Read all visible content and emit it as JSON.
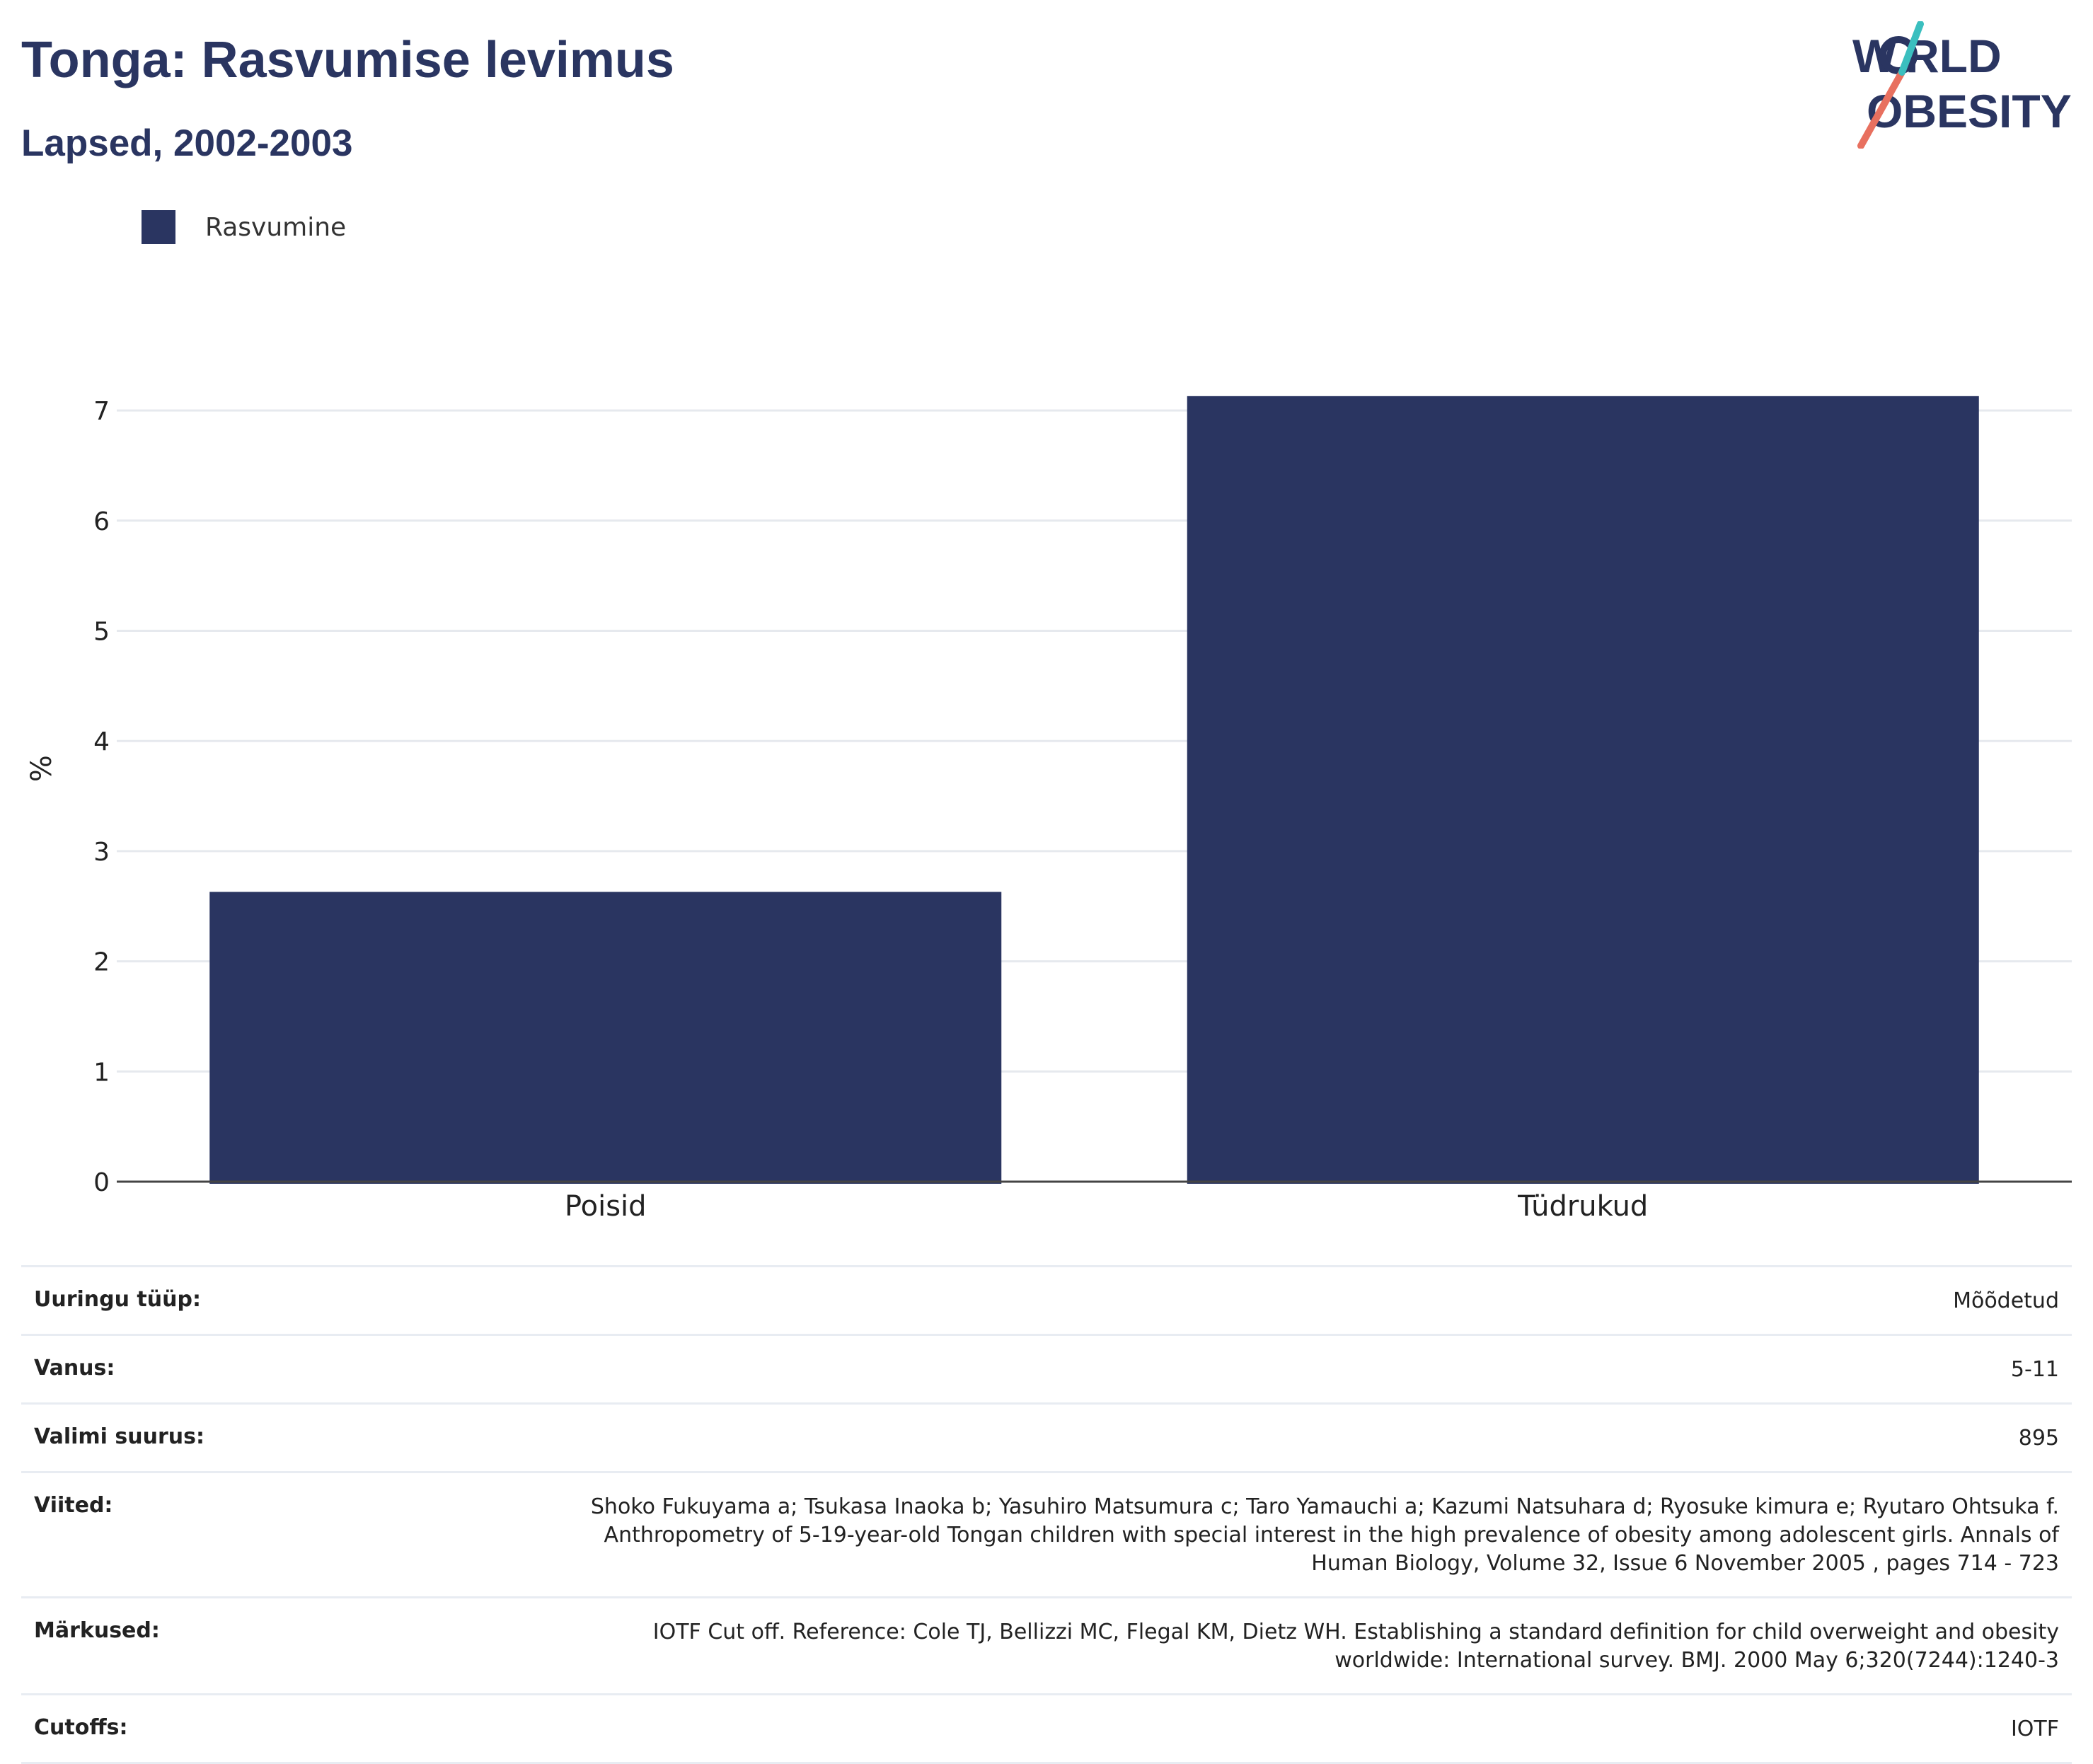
{
  "header": {
    "title": "Tonga: Rasvumise levimus",
    "subtitle": "Lapsed, 2002-2003"
  },
  "logo": {
    "line1": "WORLD",
    "line2": "OBESITY"
  },
  "legend": {
    "label": "Rasvumine"
  },
  "colors": {
    "bar": "#2a3561",
    "grid": "#e6e9ee",
    "axis": "#444444"
  },
  "chart_data": {
    "type": "bar",
    "categories": [
      "Poisid",
      "Tüdrukud"
    ],
    "series": [
      {
        "name": "Rasvumine",
        "values": [
          2.63,
          7.13
        ]
      }
    ],
    "ylabel": "%",
    "ylim": [
      0,
      7.5
    ],
    "yticks": [
      0,
      1,
      2,
      3,
      4,
      5,
      6,
      7
    ],
    "grid": true,
    "legend_position": "top-left"
  },
  "info": [
    {
      "key": "Uuringu tüüp:",
      "value": "Mõõdetud"
    },
    {
      "key": "Vanus:",
      "value": "5-11"
    },
    {
      "key": "Valimi suurus:",
      "value": "895"
    },
    {
      "key": "Viited:",
      "value": "Shoko Fukuyama a;  Tsukasa Inaoka b;  Yasuhiro Matsumura c;  Taro Yamauchi a;  Kazumi Natsuhara d;  Ryosuke kimura e; Ryutaro Ohtsuka f. Anthropometry of 5-19-year-old Tongan children with special interest in the high prevalence of obesity among adolescent girls. Annals of Human Biology, Volume 32, Issue 6 November 2005 , pages 714 - 723"
    },
    {
      "key": "Märkused:",
      "value": "IOTF Cut off. Reference: Cole TJ, Bellizzi MC, Flegal KM, Dietz WH. Establishing a standard definition for child overweight and obesity worldwide: International survey. BMJ. 2000 May 6;320(7244):1240-3"
    },
    {
      "key": "Cutoffs:",
      "value": "IOTF"
    }
  ]
}
